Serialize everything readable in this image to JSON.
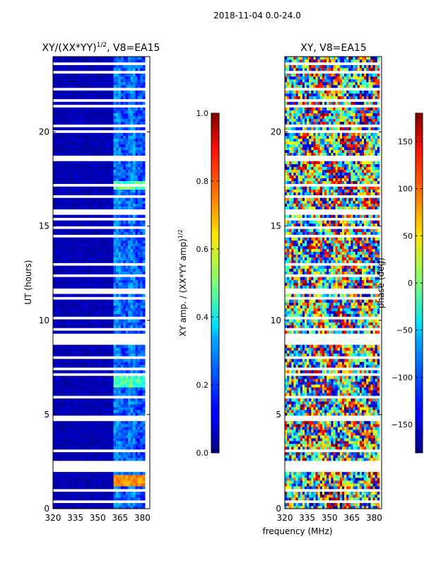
{
  "suptitle": "2018-11-04 0.0-24.0",
  "chart_data": [
    {
      "type": "heatmap",
      "title": "XY/(XX*YY)",
      "title_superscript": "1/2",
      "title_suffix": ", V8=EA15",
      "xlabel": "",
      "ylabel": "UT (hours)",
      "xlim": [
        320,
        385
      ],
      "ylim": [
        0,
        24
      ],
      "xticks": [
        "320",
        "335",
        "350",
        "365",
        "380"
      ],
      "xtick_values": [
        320,
        335,
        350,
        365,
        380
      ],
      "yticks": [
        "0",
        "5",
        "10",
        "15",
        "20"
      ],
      "ytick_values": [
        0,
        5,
        10,
        15,
        20
      ],
      "colormap": "jet",
      "colorbar": {
        "label": "XY amp. / (XX*YY amp)",
        "label_superscript": "1/2",
        "range": [
          0.0,
          1.0
        ],
        "ticks": [
          "0.0",
          "0.2",
          "0.4",
          "0.6",
          "0.8",
          "1.0"
        ],
        "tick_values": [
          0.0,
          0.2,
          0.4,
          0.6,
          0.8,
          1.0
        ]
      },
      "features": [
        {
          "desc": "low amplitude background",
          "freq_range": [
            320,
            361
          ],
          "value": 0.05
        },
        {
          "desc": "elevated channels",
          "freq_range": [
            361,
            382
          ],
          "value": 0.2
        },
        {
          "desc": "bright patches",
          "ut_ranges": [
            [
              6.5,
              7.2
            ],
            [
              8.7,
              9.2
            ],
            [
              17.0,
              17.4
            ]
          ],
          "freq_range": [
            361,
            381
          ],
          "value": 0.45
        },
        {
          "desc": "very bright block",
          "ut_range": [
            1.2,
            1.8
          ],
          "freq_range": [
            361,
            381
          ],
          "value": 0.75
        }
      ]
    },
    {
      "type": "heatmap",
      "title": "XY, V8=EA15",
      "xlabel": "frequency (MHz)",
      "ylabel": "",
      "xlim": [
        320,
        385
      ],
      "ylim": [
        0,
        24
      ],
      "xticks": [
        "320",
        "335",
        "350",
        "365",
        "380"
      ],
      "xtick_values": [
        320,
        335,
        350,
        365,
        380
      ],
      "yticks": [
        "0",
        "5",
        "10",
        "15",
        "20"
      ],
      "ytick_values": [
        0,
        5,
        10,
        15,
        20
      ],
      "colormap": "jet",
      "colorbar": {
        "label": "phase (deg)",
        "range": [
          -180,
          180
        ],
        "ticks": [
          "−150",
          "−100",
          "−50",
          "0",
          "50",
          "100",
          "150"
        ],
        "tick_values": [
          -150,
          -100,
          -50,
          0,
          50,
          100,
          150
        ]
      },
      "features": [
        {
          "desc": "noisy phase, all values",
          "range": [
            -180,
            180
          ]
        }
      ]
    }
  ]
}
